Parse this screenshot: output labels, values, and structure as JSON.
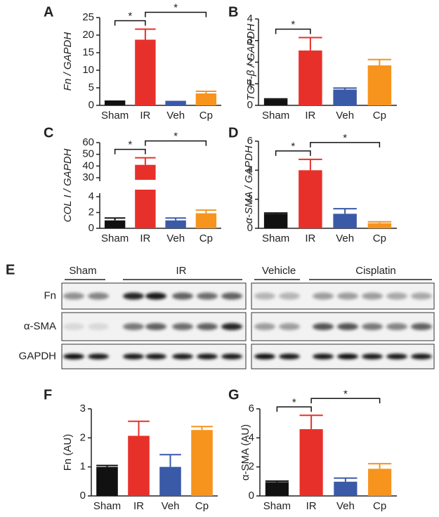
{
  "chart_data": [
    {
      "type": "bar",
      "panel": "A",
      "ylabel": "Fn / GAPDH",
      "italic_ylabel": true,
      "categories": [
        "Sham",
        "IR",
        "Veh",
        "Cp"
      ],
      "values": [
        1.0,
        18.7,
        0.9,
        3.4
      ],
      "errors": [
        0.2,
        3.0,
        0.2,
        0.6
      ],
      "colors": [
        "#111111",
        "#e8302a",
        "#3a5aa8",
        "#f7941d"
      ],
      "ylim": [
        0,
        25
      ],
      "yticks": [
        0,
        5,
        10,
        15,
        20,
        25
      ],
      "brackets": [
        {
          "text": "*",
          "categories": [
            "Sham",
            "IR"
          ]
        },
        {
          "text": "*",
          "categories": [
            "IR",
            "Cp"
          ]
        }
      ]
    },
    {
      "type": "bar",
      "panel": "B",
      "ylabel": "TGF-β / GAPDH",
      "italic_ylabel": true,
      "categories": [
        "Sham",
        "IR",
        "Veh",
        "Cp"
      ],
      "values": [
        0.27,
        2.54,
        0.73,
        1.85
      ],
      "errors": [
        0.03,
        0.6,
        0.07,
        0.27
      ],
      "colors": [
        "#111111",
        "#e8302a",
        "#3a5aa8",
        "#f7941d"
      ],
      "ylim": [
        0,
        4
      ],
      "yticks": [
        0,
        1,
        2,
        3,
        4
      ],
      "brackets": [
        {
          "text": "*",
          "categories": [
            "Sham",
            "IR"
          ]
        }
      ]
    },
    {
      "type": "bar",
      "panel": "C",
      "ylabel": "COL I / GAPDH",
      "italic_ylabel": true,
      "categories": [
        "Sham",
        "IR",
        "Veh",
        "Cp"
      ],
      "values": [
        1.0,
        41,
        1.0,
        1.9
      ],
      "errors": [
        0.3,
        6,
        0.3,
        0.4
      ],
      "colors": [
        "#111111",
        "#e8302a",
        "#3a5aa8",
        "#f7941d"
      ],
      "ylim": [
        0,
        60
      ],
      "ybreak": [
        4,
        30
      ],
      "yticks": [
        0,
        2,
        4,
        30,
        40,
        50,
        60
      ],
      "brackets": [
        {
          "text": "*",
          "categories": [
            "Sham",
            "IR"
          ]
        },
        {
          "text": "*",
          "categories": [
            "IR",
            "Cp"
          ]
        }
      ]
    },
    {
      "type": "bar",
      "panel": "D",
      "ylabel": "α-SMA / GAPDH",
      "italic_ylabel": true,
      "categories": [
        "Sham",
        "IR",
        "Veh",
        "Cp"
      ],
      "values": [
        1.0,
        4.0,
        1.0,
        0.35
      ],
      "errors": [
        0.05,
        0.75,
        0.35,
        0.1
      ],
      "colors": [
        "#111111",
        "#e8302a",
        "#3a5aa8",
        "#f7941d"
      ],
      "ylim": [
        0,
        6
      ],
      "yticks": [
        0,
        2,
        4,
        6
      ],
      "brackets": [
        {
          "text": "*",
          "categories": [
            "Sham",
            "IR"
          ]
        },
        {
          "text": "*",
          "categories": [
            "IR",
            "Cp"
          ]
        }
      ]
    },
    {
      "type": "bar",
      "panel": "F",
      "ylabel": "Fn (AU)",
      "italic_ylabel": false,
      "categories": [
        "Sham",
        "IR",
        "Veh",
        "Cp"
      ],
      "values": [
        1.0,
        2.07,
        1.0,
        2.27
      ],
      "errors": [
        0.05,
        0.5,
        0.42,
        0.12
      ],
      "colors": [
        "#111111",
        "#e8302a",
        "#3a5aa8",
        "#f7941d"
      ],
      "ylim": [
        0,
        3
      ],
      "yticks": [
        0,
        1,
        2,
        3
      ],
      "brackets": []
    },
    {
      "type": "bar",
      "panel": "G",
      "ylabel": "α-SMA (AU)",
      "italic_ylabel": false,
      "categories": [
        "Sham",
        "IR",
        "Veh",
        "Cp"
      ],
      "values": [
        0.95,
        4.6,
        0.98,
        1.87
      ],
      "errors": [
        0.07,
        0.95,
        0.25,
        0.35
      ],
      "colors": [
        "#111111",
        "#e8302a",
        "#3a5aa8",
        "#f7941d"
      ],
      "ylim": [
        0,
        6
      ],
      "yticks": [
        0,
        2,
        4,
        6
      ],
      "brackets": [
        {
          "text": "*",
          "categories": [
            "Sham",
            "IR"
          ]
        },
        {
          "text": "*",
          "categories": [
            "IR",
            "Cp"
          ]
        }
      ]
    }
  ],
  "blot": {
    "panel": "E",
    "groups": [
      "Sham",
      "IR",
      "Vehicle",
      "Cisplatin"
    ],
    "rows": [
      "Fn",
      "α-SMA",
      "GAPDH"
    ]
  }
}
